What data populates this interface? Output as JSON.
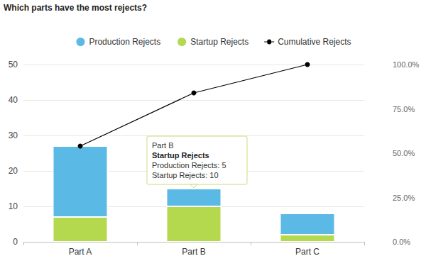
{
  "chart_data": {
    "type": "bar",
    "title": "Which parts have the most rejects?",
    "categories": [
      "Part A",
      "Part B",
      "Part C"
    ],
    "stacked": true,
    "legend": "top",
    "grid": true,
    "series": [
      {
        "name": "Production Rejects",
        "color": "#5bb9e6",
        "values": [
          20,
          5,
          6
        ]
      },
      {
        "name": "Startup Rejects",
        "color": "#b4d94e",
        "values": [
          7,
          10,
          2
        ]
      },
      {
        "name": "Cumulative Rejects",
        "type": "line",
        "axis": "y2",
        "color": "#000000",
        "marker": "circle",
        "values": [
          54,
          84,
          100
        ]
      }
    ],
    "ylim": [
      0,
      50
    ],
    "yticks": [
      0,
      10,
      20,
      30,
      40,
      50
    ],
    "y2lim": [
      0,
      100
    ],
    "y2ticks": [
      {
        "value": 0,
        "label": "0.0%"
      },
      {
        "value": 25,
        "label": "25.0%"
      },
      {
        "value": 50,
        "label": "50.0%"
      },
      {
        "value": 75,
        "label": "75.0%"
      },
      {
        "value": 100,
        "label": "100.0%"
      }
    ],
    "annotation": {
      "x": "Part B",
      "title": "Part B",
      "subtitle": "Startup Rejects",
      "lines": [
        "Production Rejects: 5",
        "Startup Rejects: 10"
      ]
    }
  }
}
